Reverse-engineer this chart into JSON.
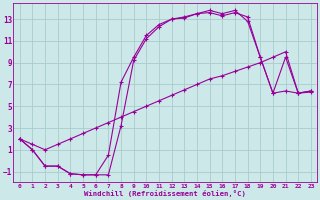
{
  "xlabel": "Windchill (Refroidissement éolien,°C)",
  "background_color": "#cce8e8",
  "grid_color": "#aacccc",
  "line_color": "#990099",
  "xlim": [
    -0.5,
    23.5
  ],
  "ylim": [
    -2,
    14.5
  ],
  "xticks": [
    0,
    1,
    2,
    3,
    4,
    5,
    6,
    7,
    8,
    9,
    10,
    11,
    12,
    13,
    14,
    15,
    16,
    17,
    18,
    19,
    20,
    21,
    22,
    23
  ],
  "yticks": [
    -1,
    1,
    3,
    5,
    7,
    9,
    11,
    13
  ],
  "line1_x": [
    0,
    1,
    2,
    3,
    4,
    5,
    6,
    7,
    8,
    9,
    10,
    11,
    12,
    13,
    14,
    15,
    16,
    17,
    18,
    19,
    20,
    21,
    22,
    23
  ],
  "line1_y": [
    2,
    1,
    -0.5,
    -0.5,
    -1.2,
    -1.3,
    -1.3,
    -1.3,
    3.2,
    9.2,
    11.2,
    12.3,
    13.0,
    13.1,
    13.5,
    13.6,
    13.3,
    13.6,
    13.2,
    9.5,
    6.2,
    6.4,
    6.2,
    6.3
  ],
  "line2_x": [
    0,
    1,
    2,
    3,
    4,
    5,
    6,
    7,
    8,
    9,
    10,
    11,
    12,
    13,
    14,
    15,
    16,
    17,
    18,
    19,
    20,
    21,
    22,
    23
  ],
  "line2_y": [
    2,
    1,
    -0.5,
    -0.5,
    -1.2,
    -1.3,
    -1.3,
    0.5,
    7.2,
    9.5,
    11.5,
    12.5,
    13.0,
    13.2,
    13.5,
    13.8,
    13.5,
    13.8,
    12.8,
    9.5,
    6.2,
    9.5,
    6.2,
    6.4
  ],
  "line3_x": [
    0,
    1,
    2,
    3,
    4,
    5,
    6,
    7,
    8,
    9,
    10,
    11,
    12,
    13,
    14,
    15,
    16,
    17,
    18,
    19,
    20,
    21,
    22,
    23
  ],
  "line3_y": [
    2,
    1.5,
    1.0,
    1.5,
    2.0,
    2.5,
    3.0,
    3.5,
    4.0,
    4.5,
    5.0,
    5.5,
    6.0,
    6.5,
    7.0,
    7.5,
    7.8,
    8.2,
    8.6,
    9.0,
    9.5,
    10.0,
    6.2,
    6.4
  ]
}
